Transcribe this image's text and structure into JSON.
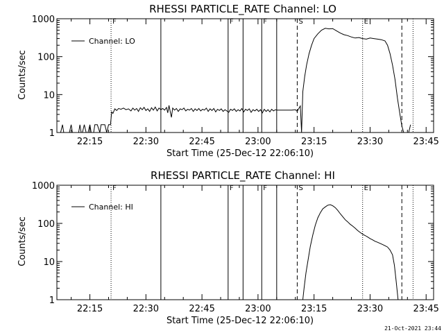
{
  "footer_timestamp": "21-Oct-2021 23:44",
  "chart_data": [
    {
      "type": "line",
      "title": "RHESSI PARTICLE_RATE Channel: LO",
      "xlabel": "Start Time (25-Dec-12 22:06:10)",
      "ylabel": "Counts/sec",
      "yscale": "log",
      "ylim": [
        1,
        1000
      ],
      "xlim": [
        "22:06:10",
        "23:47:00"
      ],
      "y_ticks": [
        "1",
        "10",
        "100",
        "1000"
      ],
      "x_ticks": [
        "22:15",
        "22:30",
        "22:45",
        "23:00",
        "23:15",
        "23:30",
        "23:45"
      ],
      "legend": {
        "label": "Channel: LO",
        "position": "top-left"
      },
      "grid": false,
      "event_markers": [
        {
          "time": "22:20:40",
          "label": "F",
          "style": "dotted"
        },
        {
          "time": "22:34:00",
          "label": "",
          "style": "solid"
        },
        {
          "time": "22:52:00",
          "label": "F",
          "style": "solid"
        },
        {
          "time": "22:56:00",
          "label": "",
          "style": "solid"
        },
        {
          "time": "23:01:00",
          "label": "F",
          "style": "solid"
        },
        {
          "time": "23:05:00",
          "label": "",
          "style": "solid"
        },
        {
          "time": "23:10:30",
          "label": "S",
          "style": "dashed"
        },
        {
          "time": "23:28:00",
          "label": "E",
          "style": "dotted"
        },
        {
          "time": "23:38:30",
          "label": "",
          "style": "dashed"
        },
        {
          "time": "23:41:30",
          "label": "",
          "style": "dotted"
        }
      ],
      "series": [
        {
          "name": "Channel: LO",
          "points": [
            [
              "22:06:20",
              1
            ],
            [
              "22:07:10",
              1
            ],
            [
              "22:07:40",
              1.6
            ],
            [
              "22:08:00",
              1
            ],
            [
              "22:09:30",
              1
            ],
            [
              "22:10:00",
              1.6
            ],
            [
              "22:10:20",
              1
            ],
            [
              "22:12:00",
              1
            ],
            [
              "22:12:20",
              1.6
            ],
            [
              "22:12:40",
              1
            ],
            [
              "22:13:00",
              1
            ],
            [
              "22:13:30",
              1.6
            ],
            [
              "22:14:00",
              1
            ],
            [
              "22:14:30",
              1
            ],
            [
              "22:15:00",
              1.6
            ],
            [
              "22:15:20",
              1
            ],
            [
              "22:16:00",
              1
            ],
            [
              "22:16:20",
              1.6
            ],
            [
              "22:17:00",
              1.6
            ],
            [
              "22:17:40",
              1
            ],
            [
              "22:18:00",
              1.6
            ],
            [
              "22:19:00",
              1.6
            ],
            [
              "22:19:30",
              1
            ],
            [
              "22:20:00",
              1.6
            ],
            [
              "22:20:30",
              1.6
            ],
            [
              "22:20:50",
              3.5
            ],
            [
              "22:21:10",
              3.2
            ],
            [
              "22:21:40",
              4.2
            ],
            [
              "22:22:10",
              3.8
            ],
            [
              "22:22:40",
              4.3
            ],
            [
              "22:23:20",
              4.1
            ],
            [
              "22:24:00",
              4.4
            ],
            [
              "22:24:40",
              4.0
            ],
            [
              "22:25:20",
              4.2
            ],
            [
              "22:26:00",
              3.7
            ],
            [
              "22:26:30",
              4.4
            ],
            [
              "22:27:00",
              3.9
            ],
            [
              "22:27:30",
              4.3
            ],
            [
              "22:28:00",
              3.6
            ],
            [
              "22:28:30",
              4.5
            ],
            [
              "22:29:00",
              4.0
            ],
            [
              "22:29:30",
              4.6
            ],
            [
              "22:30:00",
              3.8
            ],
            [
              "22:30:30",
              4.2
            ],
            [
              "22:31:00",
              3.6
            ],
            [
              "22:31:30",
              4.5
            ],
            [
              "22:32:00",
              3.9
            ],
            [
              "22:32:30",
              4.7
            ],
            [
              "22:33:00",
              3.7
            ],
            [
              "22:33:30",
              4.4
            ],
            [
              "22:34:00",
              4.0
            ],
            [
              "22:34:30",
              4.3
            ],
            [
              "22:35:00",
              3.9
            ],
            [
              "22:35:30",
              4.6
            ],
            [
              "22:35:50",
              3.3
            ],
            [
              "22:36:10",
              5.2
            ],
            [
              "22:36:30",
              3.6
            ],
            [
              "22:36:50",
              2.5
            ],
            [
              "22:37:10",
              4.4
            ],
            [
              "22:37:40",
              3.9
            ],
            [
              "22:38:10",
              4.3
            ],
            [
              "22:38:40",
              3.6
            ],
            [
              "22:39:10",
              4.2
            ],
            [
              "22:39:40",
              4.0
            ],
            [
              "22:40:10",
              4.4
            ],
            [
              "22:40:40",
              3.7
            ],
            [
              "22:41:10",
              4.1
            ],
            [
              "22:41:40",
              3.9
            ],
            [
              "22:42:10",
              4.3
            ],
            [
              "22:42:40",
              3.6
            ],
            [
              "22:43:10",
              4.2
            ],
            [
              "22:43:40",
              3.8
            ],
            [
              "22:44:10",
              4.3
            ],
            [
              "22:44:40",
              3.7
            ],
            [
              "22:45:10",
              4.1
            ],
            [
              "22:45:40",
              3.9
            ],
            [
              "22:46:10",
              4.4
            ],
            [
              "22:46:40",
              3.6
            ],
            [
              "22:47:10",
              4.2
            ],
            [
              "22:47:40",
              3.8
            ],
            [
              "22:48:10",
              4.3
            ],
            [
              "22:48:40",
              3.5
            ],
            [
              "22:49:10",
              4.1
            ],
            [
              "22:49:40",
              3.8
            ],
            [
              "22:50:10",
              4.2
            ],
            [
              "22:50:40",
              3.6
            ],
            [
              "22:51:10",
              4.0
            ],
            [
              "22:51:40",
              3.7
            ],
            [
              "22:52:10",
              3.4
            ],
            [
              "22:52:40",
              4.1
            ],
            [
              "22:53:10",
              3.8
            ],
            [
              "22:53:40",
              4.2
            ],
            [
              "22:54:10",
              3.6
            ],
            [
              "22:54:40",
              4.0
            ],
            [
              "22:55:10",
              3.7
            ],
            [
              "22:55:40",
              4.3
            ],
            [
              "22:56:10",
              3.5
            ],
            [
              "22:56:40",
              4.1
            ],
            [
              "22:57:10",
              3.8
            ],
            [
              "22:57:40",
              4.2
            ],
            [
              "22:58:10",
              3.4
            ],
            [
              "22:58:40",
              4.0
            ],
            [
              "22:59:10",
              3.7
            ],
            [
              "22:59:40",
              4.1
            ],
            [
              "23:00:10",
              3.6
            ],
            [
              "23:00:40",
              4.0
            ],
            [
              "23:01:10",
              3.3
            ],
            [
              "23:01:40",
              4.1
            ],
            [
              "23:02:10",
              3.6
            ],
            [
              "23:02:40",
              4.0
            ],
            [
              "23:03:10",
              3.5
            ],
            [
              "23:03:40",
              4.1
            ],
            [
              "23:04:10",
              3.7
            ],
            [
              "23:04:40",
              4.0
            ],
            [
              "23:05:10",
              3.9
            ],
            [
              "23:06:00",
              3.9
            ],
            [
              "23:07:00",
              3.9
            ],
            [
              "23:08:00",
              3.9
            ],
            [
              "23:09:00",
              3.9
            ],
            [
              "23:10:00",
              4.0
            ],
            [
              "23:10:30",
              3.6
            ],
            [
              "23:11:00",
              4.4
            ],
            [
              "23:11:20",
              5.0
            ],
            [
              "23:11:40",
              1.0
            ],
            [
              "23:12:00",
              12
            ],
            [
              "23:12:30",
              30
            ],
            [
              "23:13:00",
              60
            ],
            [
              "23:13:40",
              120
            ],
            [
              "23:14:20",
              200
            ],
            [
              "23:15:00",
              300
            ],
            [
              "23:16:00",
              400
            ],
            [
              "23:17:00",
              500
            ],
            [
              "23:18:00",
              560
            ],
            [
              "23:19:00",
              540
            ],
            [
              "23:20:00",
              550
            ],
            [
              "23:21:00",
              480
            ],
            [
              "23:22:00",
              420
            ],
            [
              "23:23:00",
              380
            ],
            [
              "23:24:00",
              360
            ],
            [
              "23:25:00",
              330
            ],
            [
              "23:26:00",
              310
            ],
            [
              "23:27:00",
              320
            ],
            [
              "23:28:00",
              300
            ],
            [
              "23:29:00",
              290
            ],
            [
              "23:30:00",
              310
            ],
            [
              "23:31:00",
              300
            ],
            [
              "23:32:00",
              290
            ],
            [
              "23:33:00",
              280
            ],
            [
              "23:34:00",
              260
            ],
            [
              "23:34:40",
              200
            ],
            [
              "23:35:20",
              120
            ],
            [
              "23:36:00",
              60
            ],
            [
              "23:36:40",
              25
            ],
            [
              "23:37:20",
              8
            ],
            [
              "23:38:00",
              3
            ],
            [
              "23:38:30",
              1.5
            ],
            [
              "23:39:00",
              1
            ],
            [
              "23:40:20",
              1
            ],
            [
              "23:40:50",
              1.6
            ]
          ]
        }
      ]
    },
    {
      "type": "line",
      "title": "RHESSI PARTICLE_RATE Channel: HI",
      "xlabel": "Start Time (25-Dec-12 22:06:10)",
      "ylabel": "Counts/sec",
      "yscale": "log",
      "ylim": [
        1,
        1000
      ],
      "xlim": [
        "22:06:10",
        "23:47:00"
      ],
      "y_ticks": [
        "1",
        "10",
        "100",
        "1000"
      ],
      "x_ticks": [
        "22:15",
        "22:30",
        "22:45",
        "23:00",
        "23:15",
        "23:30",
        "23:45"
      ],
      "legend": {
        "label": "Channel: HI",
        "position": "top-left"
      },
      "grid": false,
      "event_markers": [
        {
          "time": "22:20:40",
          "label": "F",
          "style": "dotted"
        },
        {
          "time": "22:34:00",
          "label": "",
          "style": "solid"
        },
        {
          "time": "22:52:00",
          "label": "F",
          "style": "solid"
        },
        {
          "time": "22:56:00",
          "label": "",
          "style": "solid"
        },
        {
          "time": "23:01:00",
          "label": "F",
          "style": "solid"
        },
        {
          "time": "23:05:00",
          "label": "",
          "style": "solid"
        },
        {
          "time": "23:10:30",
          "label": "S",
          "style": "dashed"
        },
        {
          "time": "23:28:00",
          "label": "E",
          "style": "dotted"
        },
        {
          "time": "23:38:30",
          "label": "",
          "style": "dashed"
        },
        {
          "time": "23:41:30",
          "label": "",
          "style": "dotted"
        }
      ],
      "series": [
        {
          "name": "Channel: HI",
          "points": [
            [
              "23:12:00",
              1
            ],
            [
              "23:12:20",
              2
            ],
            [
              "23:12:50",
              5
            ],
            [
              "23:13:20",
              10
            ],
            [
              "23:14:00",
              25
            ],
            [
              "23:14:40",
              50
            ],
            [
              "23:15:20",
              90
            ],
            [
              "23:16:00",
              140
            ],
            [
              "23:16:40",
              190
            ],
            [
              "23:17:20",
              240
            ],
            [
              "23:18:00",
              270
            ],
            [
              "23:18:40",
              300
            ],
            [
              "23:19:20",
              310
            ],
            [
              "23:20:00",
              290
            ],
            [
              "23:20:40",
              260
            ],
            [
              "23:21:20",
              220
            ],
            [
              "23:22:00",
              180
            ],
            [
              "23:22:40",
              150
            ],
            [
              "23:23:20",
              125
            ],
            [
              "23:24:00",
              110
            ],
            [
              "23:24:40",
              95
            ],
            [
              "23:25:20",
              85
            ],
            [
              "23:26:00",
              75
            ],
            [
              "23:26:40",
              65
            ],
            [
              "23:27:20",
              58
            ],
            [
              "23:28:00",
              52
            ],
            [
              "23:28:40",
              48
            ],
            [
              "23:29:20",
              44
            ],
            [
              "23:30:00",
              40
            ],
            [
              "23:30:40",
              37
            ],
            [
              "23:31:20",
              34
            ],
            [
              "23:32:00",
              32
            ],
            [
              "23:32:40",
              30
            ],
            [
              "23:33:20",
              28
            ],
            [
              "23:34:00",
              26
            ],
            [
              "23:34:40",
              24
            ],
            [
              "23:35:20",
              20
            ],
            [
              "23:36:00",
              15
            ],
            [
              "23:36:30",
              8
            ],
            [
              "23:37:00",
              3
            ],
            [
              "23:37:30",
              1
            ]
          ]
        }
      ]
    }
  ]
}
